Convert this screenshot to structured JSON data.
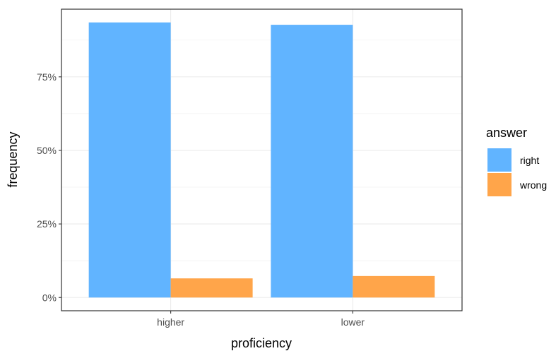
{
  "chart_data": {
    "type": "bar",
    "xlabel": "proficiency",
    "ylabel": "frequency",
    "categories": [
      "higher",
      "lower"
    ],
    "series": [
      {
        "name": "right",
        "color": "#61b4ff",
        "values": [
          0.935,
          0.927
        ]
      },
      {
        "name": "wrong",
        "color": "#ffa54a",
        "values": [
          0.065,
          0.073
        ]
      }
    ],
    "ylim": [
      -0.045,
      0.98
    ],
    "y_ticks": [
      0,
      0.25,
      0.5,
      0.75
    ],
    "y_tick_labels": [
      "0%",
      "25%",
      "50%",
      "75%"
    ],
    "grid": true,
    "legend": {
      "title": "answer",
      "position": "right"
    }
  }
}
